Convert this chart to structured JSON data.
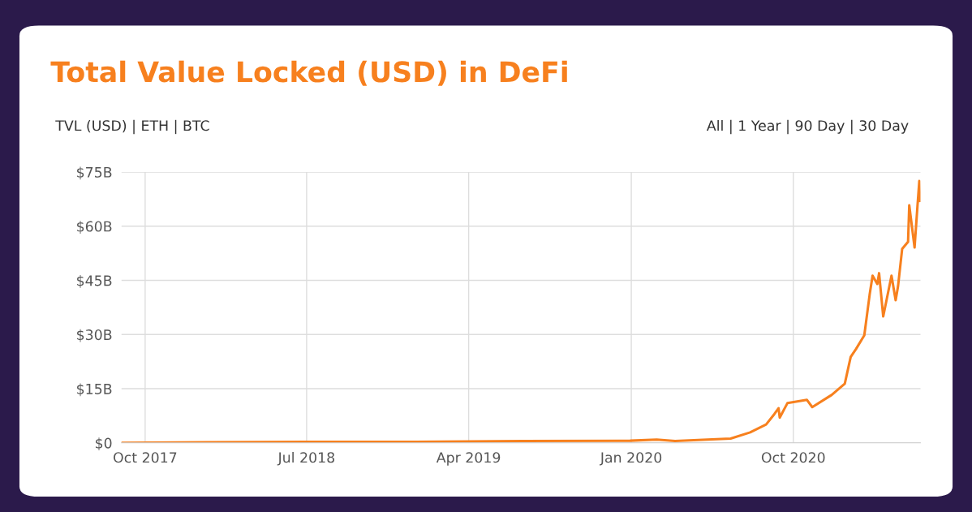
{
  "chart_data": {
    "type": "line",
    "title": "Total Value Locked (USD) in DeFi",
    "annotations": [
      "TVL (USD) | ETH | BTC",
      "All | 1 Year | 90 Day | 30 Day"
    ],
    "xlim": [
      "2017-08-22",
      "2021-05-04"
    ],
    "xticks": [
      {
        "value": "2017-10-01",
        "label": "Oct 2017"
      },
      {
        "value": "2018-07-01",
        "label": "Jul 2018"
      },
      {
        "value": "2019-04-01",
        "label": "Apr 2019"
      },
      {
        "value": "2020-01-01",
        "label": "Jan 2020"
      },
      {
        "value": "2020-10-01",
        "label": "Oct 2020"
      }
    ],
    "ylim": [
      0,
      75
    ],
    "yticks": [
      {
        "value": 0,
        "label": "$0"
      },
      {
        "value": 15,
        "label": "$15B"
      },
      {
        "value": 30,
        "label": "$30B"
      },
      {
        "value": 45,
        "label": "$45B"
      },
      {
        "value": 60,
        "label": "$60B"
      },
      {
        "value": 75,
        "label": "$75B"
      }
    ],
    "grid": true,
    "legend": false,
    "marker": "none",
    "line_style": "solid",
    "series": [
      {
        "color": "#f7801e",
        "x": [
          "2017-08-22",
          "2018-01-15",
          "2018-07-01",
          "2019-01-01",
          "2019-07-01",
          "2019-12-30",
          "2020-02-13",
          "2020-03-15",
          "2020-06-17",
          "2020-07-20",
          "2020-08-16",
          "2020-08-30",
          "2020-09-06",
          "2020-09-08",
          "2020-09-21",
          "2020-10-24",
          "2020-11-02",
          "2020-12-05",
          "2020-12-27",
          "2021-01-06",
          "2021-01-15",
          "2021-01-29",
          "2021-02-07",
          "2021-02-12",
          "2021-02-20",
          "2021-02-23",
          "2021-03-02",
          "2021-03-16",
          "2021-03-23",
          "2021-03-27",
          "2021-04-03",
          "2021-04-13",
          "2021-04-15",
          "2021-04-24",
          "2021-04-29",
          "2021-05-02",
          "2021-05-03"
        ],
        "values": [
          0.0,
          0.2,
          0.3,
          0.3,
          0.5,
          0.6,
          0.9,
          0.5,
          1.2,
          2.9,
          5.1,
          8.0,
          9.6,
          7.0,
          11.0,
          11.9,
          9.9,
          13.3,
          16.4,
          23.8,
          26.0,
          29.8,
          41.0,
          46.3,
          44.0,
          47.0,
          35.0,
          46.3,
          39.5,
          43.3,
          53.7,
          55.7,
          65.8,
          54.1,
          65.8,
          72.5,
          67.0
        ]
      }
    ]
  }
}
